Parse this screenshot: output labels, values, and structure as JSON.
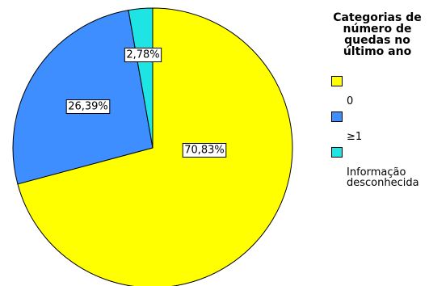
{
  "chart_data": {
    "type": "pie",
    "title": "",
    "legend_title": "Categorias de\nnúmero de\nquedas no\núltimo ano",
    "legend_position": "right",
    "slices": [
      {
        "category": "0",
        "value": 70.83,
        "label": "70,83%",
        "color": "#ffff00"
      },
      {
        "category": "≥1",
        "value": 26.39,
        "label": "26,39%",
        "color": "#3e8eff"
      },
      {
        "category": "Informação\ndesconhecida",
        "value": 2.78,
        "label": "2,78%",
        "color": "#1ee4e4"
      }
    ]
  }
}
